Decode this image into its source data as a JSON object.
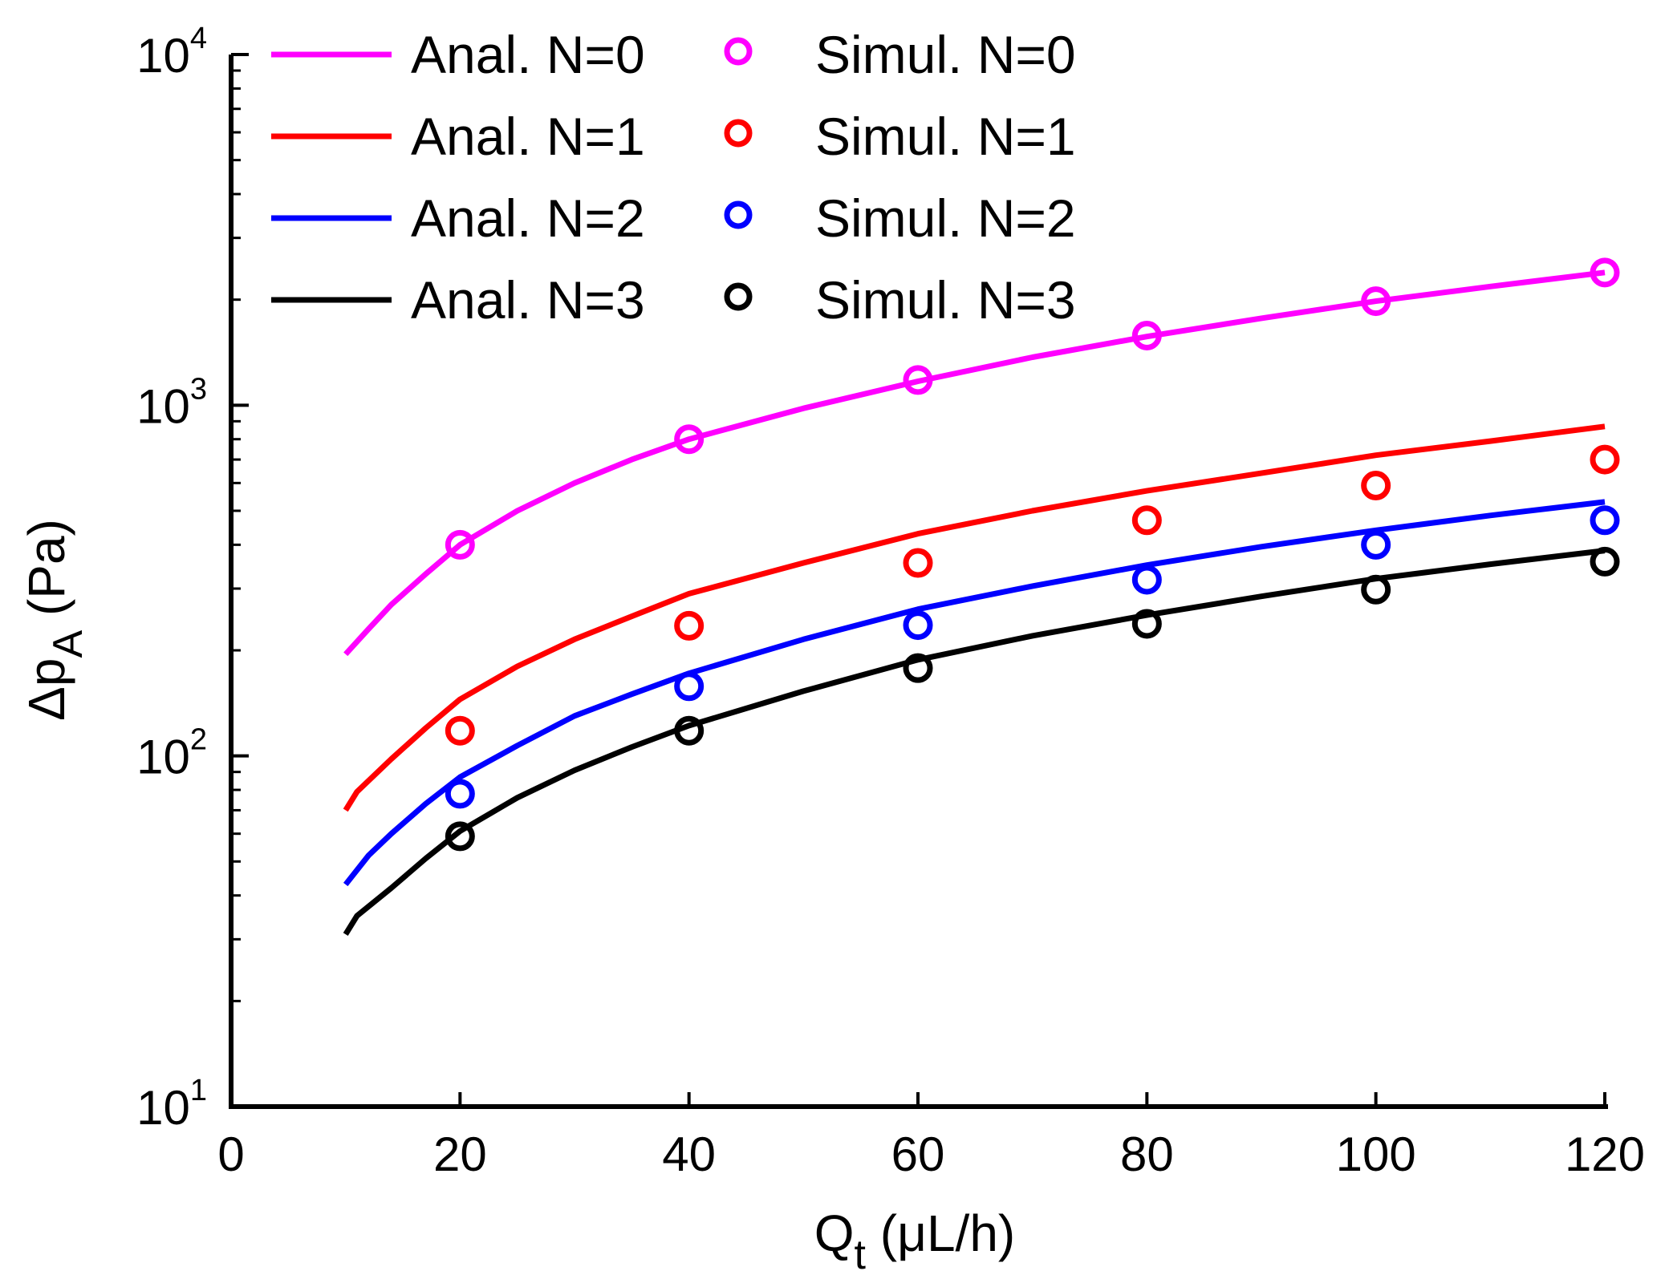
{
  "chart_data": {
    "type": "line",
    "title": "",
    "xlabel": {
      "main": "Q",
      "sub": "t",
      "rest": " (μL/h)"
    },
    "ylabel": {
      "main": "Δp",
      "sub": "A",
      "rest": " (Pa)"
    },
    "xlim": [
      0,
      120
    ],
    "ylim": [
      10,
      10000
    ],
    "yscale": "log",
    "x_ticks": [
      0,
      20,
      40,
      60,
      80,
      100,
      120
    ],
    "y_ticks": [
      {
        "value": 10,
        "base": "10",
        "exp": "1"
      },
      {
        "value": 100,
        "base": "10",
        "exp": "2"
      },
      {
        "value": 1000,
        "base": "10",
        "exp": "3"
      },
      {
        "value": 10000,
        "base": "10",
        "exp": "4"
      }
    ],
    "legend_position": "top-left",
    "series": [
      {
        "name": "Anal. N=0",
        "kind": "line",
        "color": "#ff00ff",
        "x": [
          10,
          12,
          14,
          17,
          20,
          25,
          30,
          35,
          40,
          50,
          60,
          70,
          80,
          90,
          100,
          110,
          120
        ],
        "y": [
          195,
          230,
          270,
          330,
          400,
          500,
          600,
          700,
          800,
          980,
          1170,
          1370,
          1570,
          1770,
          1980,
          2180,
          2390
        ]
      },
      {
        "name": "Anal. N=1",
        "kind": "line",
        "color": "#ff0000",
        "x": [
          10,
          11,
          14,
          17,
          20,
          25,
          30,
          35,
          40,
          50,
          60,
          70,
          80,
          90,
          100,
          110,
          120
        ],
        "y": [
          70,
          79,
          98,
          120,
          145,
          180,
          215,
          250,
          290,
          355,
          430,
          500,
          570,
          640,
          720,
          790,
          870
        ]
      },
      {
        "name": "Anal. N=2",
        "kind": "line",
        "color": "#0000ff",
        "x": [
          10,
          12,
          14,
          17,
          20,
          25,
          30,
          35,
          40,
          50,
          60,
          70,
          80,
          90,
          100,
          110,
          120
        ],
        "y": [
          43,
          52,
          60,
          73,
          87,
          107,
          130,
          150,
          172,
          215,
          262,
          305,
          350,
          395,
          440,
          485,
          530
        ]
      },
      {
        "name": "Anal. N=3",
        "kind": "line",
        "color": "#000000",
        "x": [
          10,
          11,
          14,
          17,
          20,
          25,
          30,
          35,
          40,
          50,
          60,
          70,
          80,
          90,
          100,
          110,
          120
        ],
        "y": [
          31,
          35,
          42,
          51,
          61,
          76,
          91,
          106,
          122,
          153,
          188,
          220,
          252,
          285,
          320,
          352,
          385
        ]
      },
      {
        "name": "Simul. N=0",
        "kind": "marker",
        "color": "#ff00ff",
        "x": [
          20,
          40,
          60,
          80,
          100,
          120
        ],
        "y": [
          400,
          800,
          1180,
          1580,
          1980,
          2390
        ]
      },
      {
        "name": "Simul. N=1",
        "kind": "marker",
        "color": "#ff0000",
        "x": [
          20,
          40,
          60,
          80,
          100,
          120
        ],
        "y": [
          118,
          235,
          355,
          470,
          590,
          700
        ]
      },
      {
        "name": "Simul. N=2",
        "kind": "marker",
        "color": "#0000ff",
        "x": [
          20,
          40,
          60,
          80,
          100,
          120
        ],
        "y": [
          78,
          158,
          236,
          318,
          400,
          470
        ]
      },
      {
        "name": "Simul. N=3",
        "kind": "marker",
        "color": "#000000",
        "x": [
          20,
          40,
          60,
          80,
          100,
          120
        ],
        "y": [
          59,
          118,
          178,
          238,
          298,
          358
        ]
      }
    ]
  }
}
